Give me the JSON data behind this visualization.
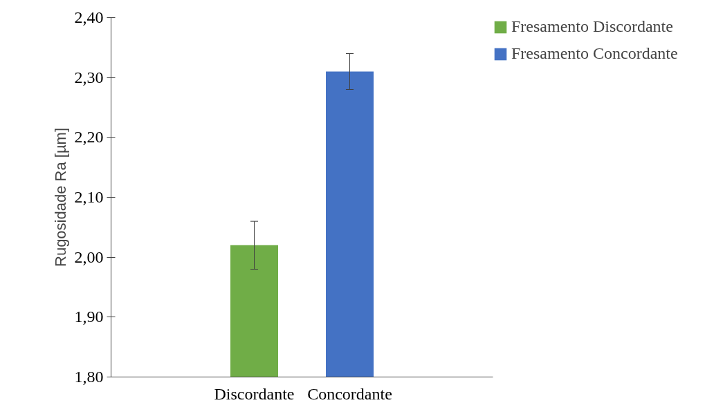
{
  "chart_data": {
    "type": "bar",
    "ylabel": "Rugosidade Ra [µm]",
    "categories": [
      "Discordante",
      "Concordante"
    ],
    "series": [
      {
        "name": "Fresamento Discordante",
        "color": "#70ad47",
        "values": [
          2.02,
          null
        ],
        "errors": [
          [
            1.98,
            2.06
          ],
          null
        ]
      },
      {
        "name": "Fresamento Concordante",
        "color": "#4472c4",
        "values": [
          null,
          2.31
        ],
        "errors": [
          null,
          [
            2.28,
            2.34
          ]
        ]
      }
    ],
    "ylim": [
      1.8,
      2.4
    ],
    "yticks": [
      {
        "value": 1.8,
        "label": "1,80"
      },
      {
        "value": 1.9,
        "label": "1,90"
      },
      {
        "value": 2.0,
        "label": "2,00"
      },
      {
        "value": 2.1,
        "label": "2,10"
      },
      {
        "value": 2.2,
        "label": "2,20"
      },
      {
        "value": 2.3,
        "label": "2,30"
      },
      {
        "value": 2.4,
        "label": "2,40"
      }
    ],
    "grid": false,
    "legend": "top right",
    "stacked": true
  }
}
